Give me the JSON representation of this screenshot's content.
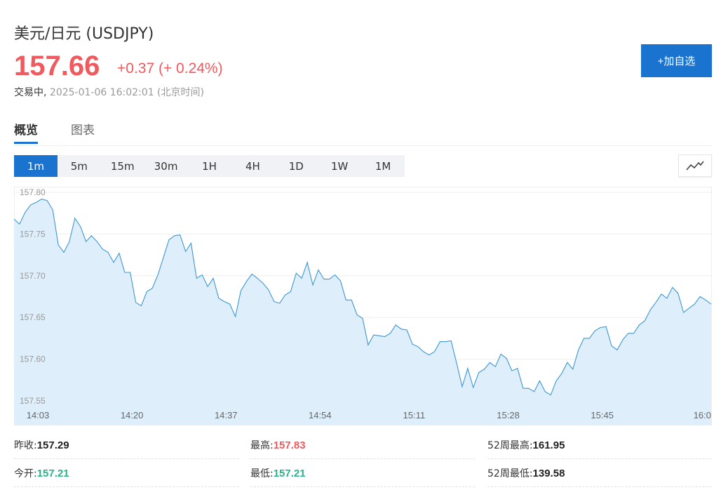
{
  "header": {
    "title": "美元/日元 (USDJPY)",
    "price": "157.66",
    "change": "+0.37 (+ 0.24%)",
    "status": "交易中,",
    "timestamp": "2025-01-06 16:02:01 (北京时间)",
    "add_button": "+加自选"
  },
  "tabs": [
    {
      "label": "概览",
      "active": true
    },
    {
      "label": "图表",
      "active": false
    }
  ],
  "periods": [
    {
      "label": "1m",
      "active": true
    },
    {
      "label": "5m",
      "active": false
    },
    {
      "label": "15m",
      "active": false
    },
    {
      "label": "30m",
      "active": false
    },
    {
      "label": "1H",
      "active": false
    },
    {
      "label": "4H",
      "active": false
    },
    {
      "label": "1D",
      "active": false
    },
    {
      "label": "1W",
      "active": false
    },
    {
      "label": "1M",
      "active": false
    }
  ],
  "chart_type_icon": "line-chart-icon",
  "colors": {
    "accent": "#1a73cf",
    "up": "#f05a5e",
    "down": "#2bb38a",
    "line": "#3d97d3",
    "area": "#deeefb"
  },
  "chart_data": {
    "type": "area",
    "title": "",
    "xlabel": "",
    "ylabel": "",
    "x_ticks": [
      "14:03",
      "14:20",
      "14:37",
      "14:54",
      "15:11",
      "15:28",
      "15:45",
      "16:0"
    ],
    "y_ticks": [
      "157.80",
      "157.75",
      "157.70",
      "157.65",
      "157.60",
      "157.55"
    ],
    "ylim": [
      157.535,
      157.8
    ],
    "grid": true,
    "x_start_minute": 0,
    "x_minutes_per_tick": 17,
    "series": [
      {
        "values": [
          157.768,
          157.762,
          157.776,
          157.785,
          157.788,
          157.792,
          157.79,
          157.779,
          157.737,
          157.728,
          157.741,
          157.769,
          157.759,
          157.741,
          157.748,
          157.741,
          157.732,
          157.728,
          157.716,
          157.727,
          157.704,
          157.704,
          157.668,
          157.664,
          157.681,
          157.685,
          157.701,
          157.722,
          157.743,
          157.748,
          157.749,
          157.729,
          157.739,
          157.697,
          157.701,
          157.687,
          157.697,
          157.673,
          157.669,
          157.666,
          157.651,
          157.682,
          157.693,
          157.702,
          157.697,
          157.691,
          157.683,
          157.669,
          157.667,
          157.677,
          157.681,
          157.703,
          157.697,
          157.716,
          157.689,
          157.707,
          157.696,
          157.696,
          157.701,
          157.694,
          157.671,
          157.671,
          157.653,
          157.649,
          157.617,
          157.629,
          157.628,
          157.627,
          157.631,
          157.641,
          157.636,
          157.635,
          157.618,
          157.615,
          157.609,
          157.605,
          157.609,
          157.621,
          157.621,
          157.622,
          157.595,
          157.567,
          157.589,
          157.566,
          157.584,
          157.588,
          157.596,
          157.591,
          157.606,
          157.601,
          157.586,
          157.589,
          157.565,
          157.565,
          157.561,
          157.574,
          157.561,
          157.557,
          157.574,
          157.583,
          157.596,
          157.588,
          157.611,
          157.625,
          157.625,
          157.634,
          157.638,
          157.639,
          157.616,
          157.611,
          157.623,
          157.631,
          157.631,
          157.641,
          157.646,
          157.659,
          157.668,
          157.678,
          157.673,
          157.686,
          157.679,
          157.656,
          157.661,
          157.666,
          157.675,
          157.671,
          157.666
        ]
      }
    ]
  },
  "stats": {
    "prev_close_label": "昨收:",
    "prev_close": "157.29",
    "high_label": "最高:",
    "high": "157.83",
    "week52_high_label": "52周最高:",
    "week52_high": "161.95",
    "open_label": "今开:",
    "open": "157.21",
    "low_label": "最低:",
    "low": "157.21",
    "week52_low_label": "52周最低:",
    "week52_low": "139.58"
  }
}
